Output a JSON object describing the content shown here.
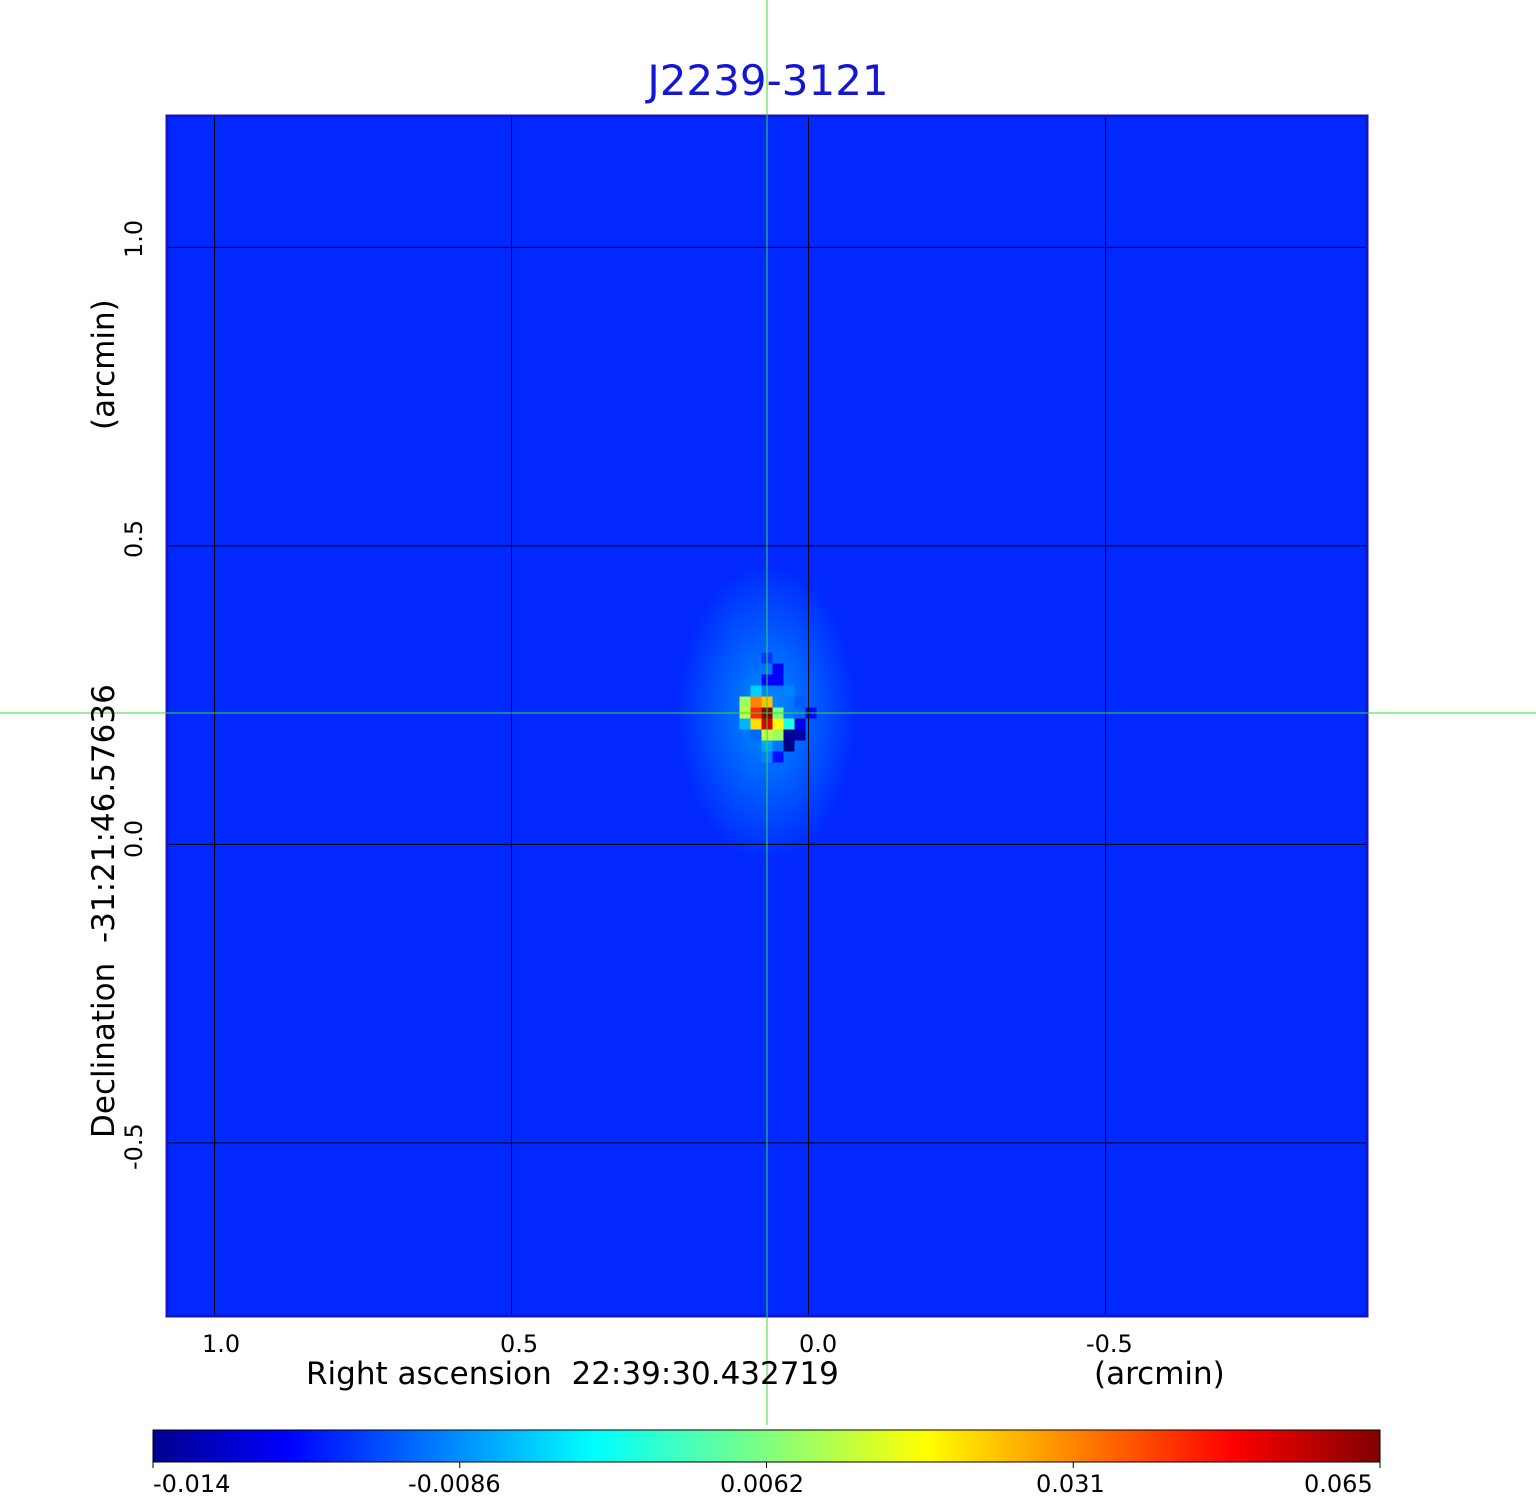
{
  "chart_data": {
    "type": "heatmap",
    "title": "J2239-3121",
    "xlabel": "Right ascension  22:39:30.432719",
    "xunit": "(arcmin)",
    "ylabel": "Declination  -31:21:46.57636",
    "yunit": "(arcmin)",
    "x_ticks": [
      "1.0",
      "0.5",
      "0.0",
      "-0.5"
    ],
    "y_ticks": [
      "1.0",
      "0.5",
      "0.0",
      "-0.5"
    ],
    "xlim": [
      1.08,
      -0.94
    ],
    "ylim": [
      -0.79,
      1.22
    ],
    "grid": true,
    "colormap": "jet",
    "colorbar_ticks": [
      "-0.014",
      "-0.0086",
      "0.0062",
      "0.031",
      "0.065"
    ],
    "colorbar_range": [
      -0.014,
      0.065
    ],
    "background_value": -0.001,
    "crosshair": {
      "x": 0.07,
      "y": 0.22
    },
    "features": [
      {
        "x": 0.07,
        "y": 0.22,
        "value": 0.065,
        "label": "peak"
      },
      {
        "x": 0.03,
        "y": 0.19,
        "value": -0.014,
        "label": "negative"
      }
    ]
  }
}
